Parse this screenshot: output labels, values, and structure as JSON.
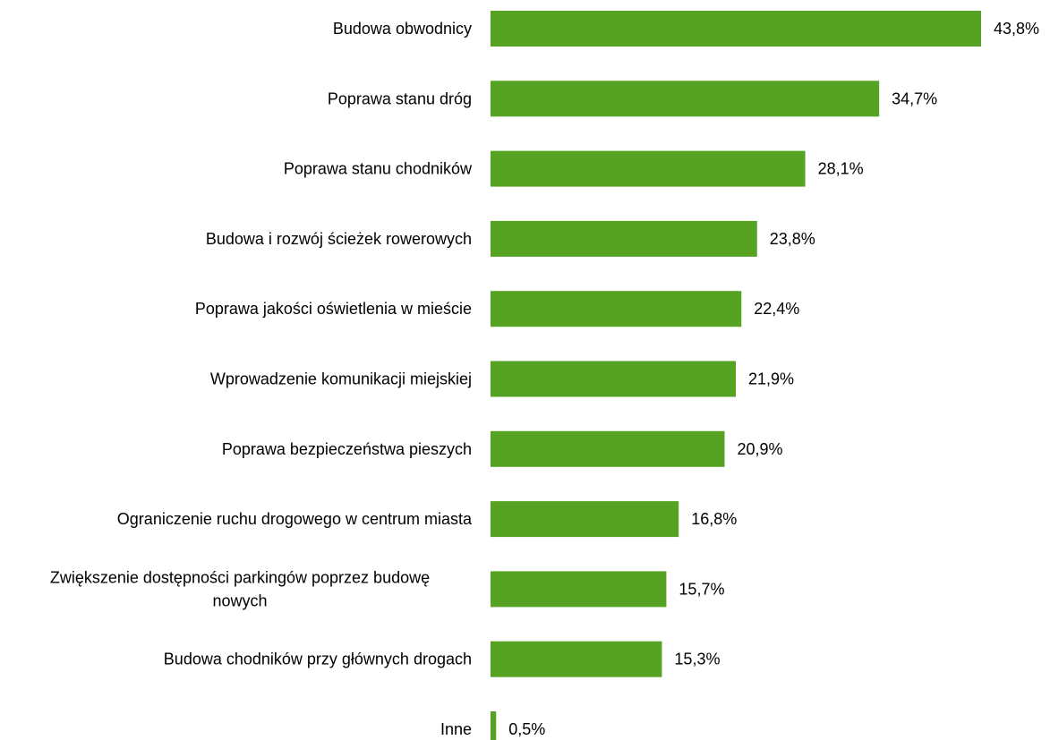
{
  "chart_data": {
    "type": "bar",
    "orientation": "horizontal",
    "title": "",
    "xlabel": "",
    "ylabel": "",
    "grid": false,
    "legend": "none",
    "bar_color": "#56A324",
    "categories": [
      "Budowa obwodnicy",
      "Poprawa stanu dróg",
      "Poprawa stanu chodników",
      "Budowa i rozwój ścieżek rowerowych",
      "Poprawa jakości oświetlenia w mieście",
      "Wprowadzenie komunikacji miejskiej",
      "Poprawa bezpieczeństwa pieszych",
      "Ograniczenie ruchu drogowego w centrum miasta",
      "Zwiększenie dostępności parkingów poprzez budowę nowych",
      "Budowa chodników przy głównych drogach",
      "Inne"
    ],
    "values": [
      43.8,
      34.7,
      28.1,
      23.8,
      22.4,
      21.9,
      20.9,
      16.8,
      15.7,
      15.3,
      0.5
    ],
    "value_labels": [
      "43,8%",
      "34,7%",
      "28,1%",
      "23,8%",
      "22,4%",
      "21,9%",
      "20,9%",
      "16,8%",
      "15,7%",
      "15,3%",
      "0,5%"
    ],
    "label_lines": [
      [
        "Budowa obwodnicy"
      ],
      [
        "Poprawa stanu dróg"
      ],
      [
        "Poprawa stanu chodników"
      ],
      [
        "Budowa i rozwój ścieżek rowerowych"
      ],
      [
        "Poprawa jakości oświetlenia w mieście"
      ],
      [
        "Wprowadzenie komunikacji miejskiej"
      ],
      [
        "Poprawa bezpieczeństwa pieszych"
      ],
      [
        "Ograniczenie ruchu drogowego w centrum miasta"
      ],
      [
        "Zwiększenie dostępności parkingów poprzez budowę",
        "nowych"
      ],
      [
        "Budowa chodników przy głównych drogach"
      ],
      [
        "Inne"
      ]
    ],
    "xlim": [
      0,
      43.8
    ]
  }
}
